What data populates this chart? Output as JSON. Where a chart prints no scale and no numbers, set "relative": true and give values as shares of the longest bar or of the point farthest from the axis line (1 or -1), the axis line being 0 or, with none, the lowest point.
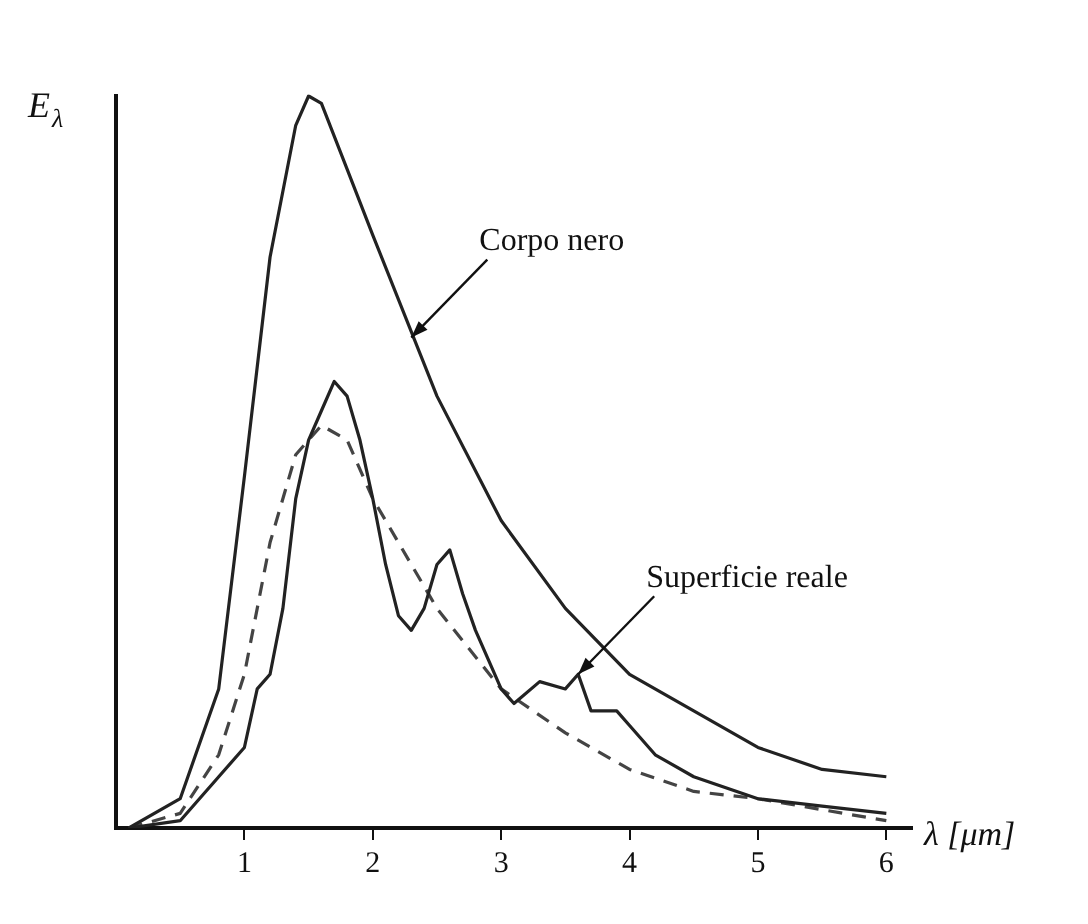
{
  "chart_data": {
    "type": "line",
    "relative": true,
    "xlabel": "λ [μm]",
    "ylabel": "E$_{λ}$",
    "xlim": [
      0,
      6.2
    ],
    "xticks": [
      1,
      2,
      3,
      4,
      5,
      6
    ],
    "grid": false,
    "legend": false,
    "marker": "none",
    "series": [
      {
        "color": "#222222",
        "line_style": "solid",
        "x": [
          0.1,
          0.5,
          0.8,
          1.0,
          1.2,
          1.4,
          1.5,
          1.6,
          1.8,
          2.0,
          2.5,
          3.0,
          3.5,
          4.0,
          4.5,
          5.0,
          5.5,
          6.0
        ],
        "values": [
          0,
          0.04,
          0.19,
          0.48,
          0.78,
          0.96,
          1,
          0.99,
          0.9,
          0.81,
          0.59,
          0.42,
          0.3,
          0.21,
          0.16,
          0.11,
          0.08,
          0.07
        ]
      },
      {
        "color": "#222222",
        "line_style": "solid",
        "x": [
          0.1,
          0.5,
          0.8,
          1.0,
          1.1,
          1.2,
          1.3,
          1.4,
          1.5,
          1.6,
          1.7,
          1.8,
          1.9,
          2.0,
          2.1,
          2.2,
          2.3,
          2.4,
          2.5,
          2.6,
          2.7,
          2.8,
          2.9,
          3.0,
          3.1,
          3.3,
          3.5,
          3.6,
          3.7,
          3.9,
          4.0,
          4.2,
          4.5,
          5.0,
          5.5,
          6.0
        ],
        "values": [
          0,
          0.01,
          0.07,
          0.11,
          0.19,
          0.21,
          0.3,
          0.45,
          0.53,
          0.57,
          0.61,
          0.59,
          0.53,
          0.45,
          0.36,
          0.29,
          0.27,
          0.3,
          0.36,
          0.38,
          0.32,
          0.27,
          0.23,
          0.19,
          0.17,
          0.2,
          0.19,
          0.21,
          0.16,
          0.16,
          0.14,
          0.1,
          0.07,
          0.04,
          0.03,
          0.02
        ]
      },
      {
        "color": "#444444",
        "line_style": "dashed",
        "x": [
          0.1,
          0.5,
          0.8,
          1.0,
          1.2,
          1.4,
          1.6,
          1.8,
          2.0,
          2.5,
          3.0,
          3.5,
          4.0,
          4.5,
          5.0,
          6.0
        ],
        "values": [
          0,
          0.02,
          0.1,
          0.21,
          0.39,
          0.51,
          0.55,
          0.53,
          0.45,
          0.3,
          0.19,
          0.13,
          0.08,
          0.05,
          0.04,
          0.01
        ]
      }
    ],
    "annotations": [
      {
        "text": "Corpo nero",
        "x": 2.3,
        "y": 0.67
      },
      {
        "text": "Superficie reale",
        "x": 3.6,
        "y": 0.21
      }
    ]
  }
}
